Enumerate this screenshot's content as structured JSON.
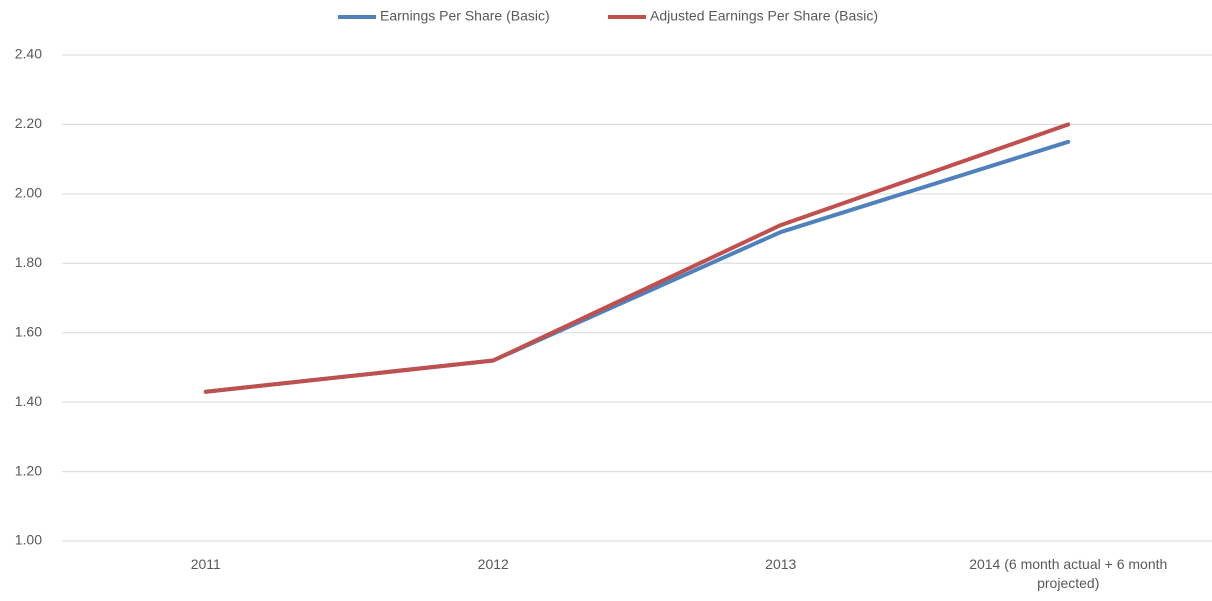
{
  "chart_data": {
    "type": "line",
    "categories": [
      "2011",
      "2012",
      "2013",
      "2014 (6 month actual + 6 month projected)"
    ],
    "series": [
      {
        "name": "Earnings Per Share (Basic)",
        "color": "#4f81bd",
        "values": [
          1.43,
          1.52,
          1.89,
          2.15
        ]
      },
      {
        "name": "Adjusted Earnings Per Share (Basic)",
        "color": "#c0504d",
        "values": [
          1.43,
          1.52,
          1.91,
          2.2
        ]
      }
    ],
    "ylim": [
      1,
      2.4
    ],
    "yticks": [
      {
        "value": 1,
        "label": "1.00"
      },
      {
        "value": 1.2,
        "label": "1.20"
      },
      {
        "value": 1.4,
        "label": "1.40"
      },
      {
        "value": 1.6,
        "label": "1.60"
      },
      {
        "value": 1.8,
        "label": "1.80"
      },
      {
        "value": 2,
        "label": "2.00"
      },
      {
        "value": 2.2,
        "label": "2.20"
      },
      {
        "value": 2.4,
        "label": "2.40"
      }
    ],
    "grid": true,
    "legend": "top"
  }
}
